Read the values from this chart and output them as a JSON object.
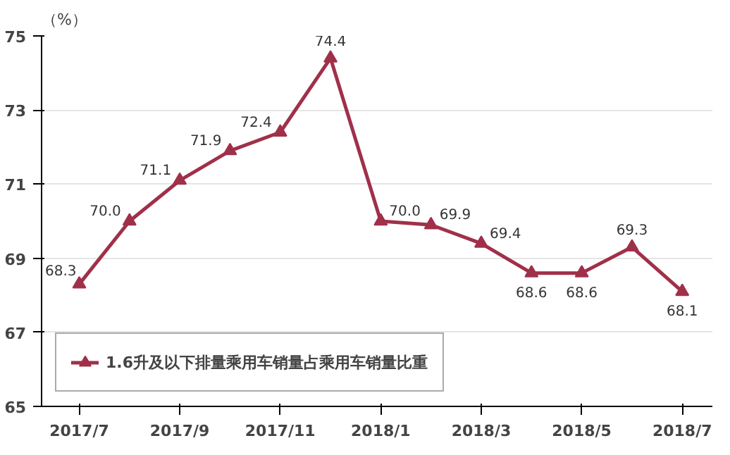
{
  "chart_data": {
    "type": "line",
    "ylabel": "（%）",
    "categories": [
      "2017/7",
      null,
      "2017/9",
      null,
      "2017/11",
      null,
      "2018/1",
      null,
      "2018/3",
      null,
      "2018/5",
      null,
      "2018/7"
    ],
    "series": [
      {
        "name": "1.6升及以下排量乘用车销量占乘用车销量比重",
        "color": "#a0304a",
        "values": [
          68.3,
          70.0,
          71.1,
          71.9,
          72.4,
          74.4,
          70.0,
          69.9,
          69.4,
          68.6,
          68.6,
          69.3,
          68.1
        ],
        "value_labels": [
          "68.3",
          "70.0",
          "71.1",
          "71.9",
          "72.4",
          "74.4",
          "70.0",
          "69.9",
          "69.4",
          "68.6",
          "68.6",
          "69.3",
          "68.1"
        ]
      }
    ],
    "ylim": [
      65,
      75
    ],
    "yticks": [
      65,
      67,
      69,
      71,
      73,
      75
    ],
    "grid": "y",
    "legend": "bottom left",
    "marker": "triangle",
    "line_style": "solid",
    "data_labels": true
  }
}
